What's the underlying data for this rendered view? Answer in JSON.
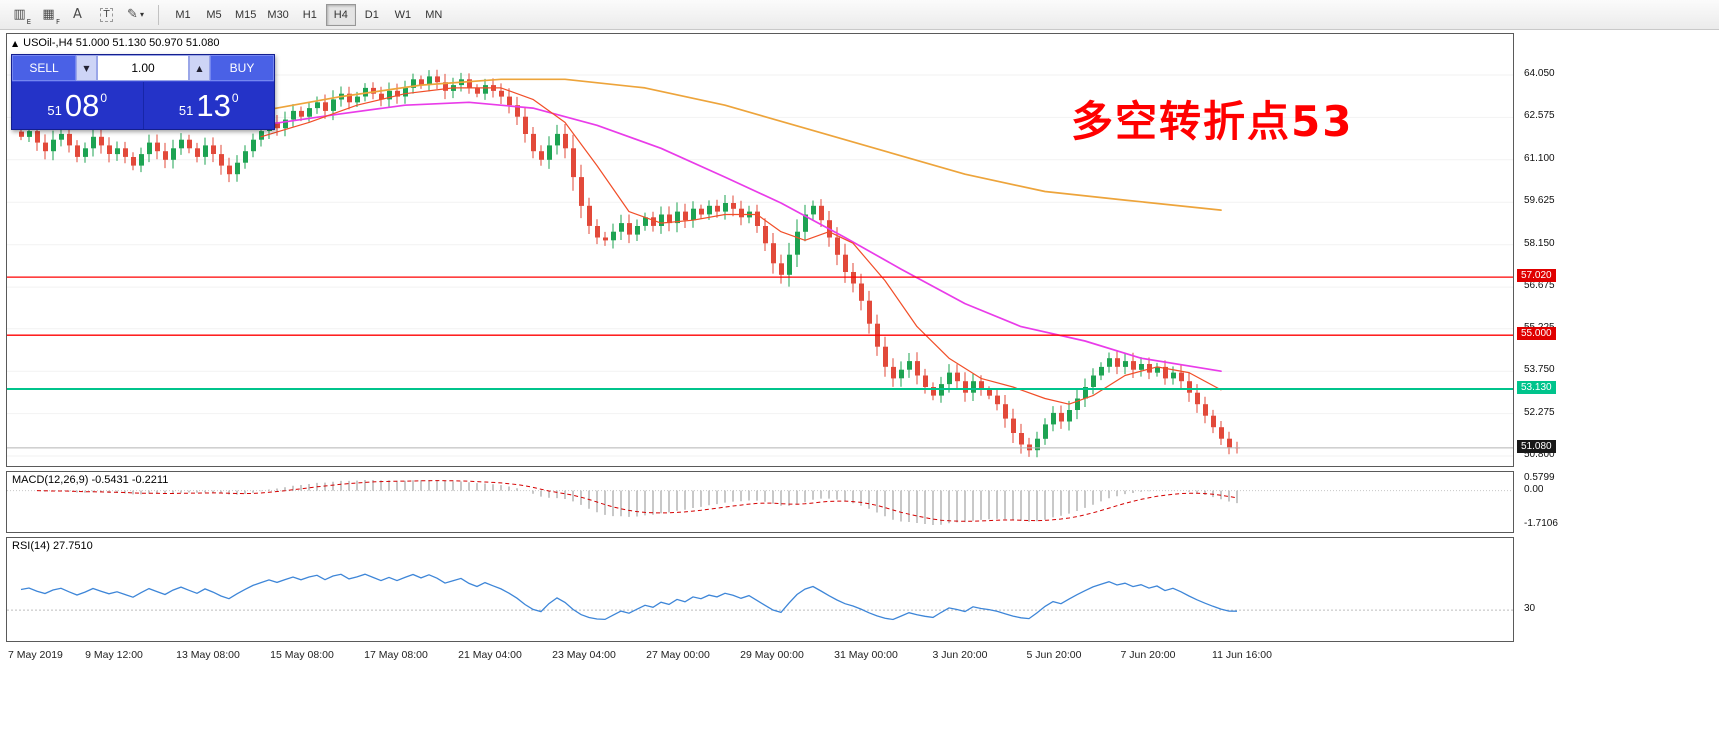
{
  "toolbar": {
    "icons": [
      {
        "name": "candlestick-chart-icon",
        "glyph": "▥",
        "sub": "E"
      },
      {
        "name": "tile-windows-icon",
        "glyph": "▦",
        "sub": "F"
      },
      {
        "name": "font-icon",
        "glyph": "A",
        "sub": ""
      },
      {
        "name": "text-label-icon",
        "glyph": "T",
        "sub": "",
        "boxed": true
      },
      {
        "name": "colors-icon",
        "glyph": "✎",
        "sub": "",
        "dropdown": true
      }
    ],
    "timeframes": [
      "M1",
      "M5",
      "M15",
      "M30",
      "H1",
      "H4",
      "D1",
      "W1",
      "MN"
    ],
    "active_timeframe": "H4"
  },
  "symbol_bar": {
    "collapse_icon": "▲",
    "text": "USOil-,H4  51.000 51.130 50.970 51.080"
  },
  "trade_panel": {
    "sell_label": "SELL",
    "buy_label": "BUY",
    "volume": "1.00",
    "sell_price_prefix": "51",
    "sell_price_main": "08",
    "sell_price_sup": "0",
    "buy_price_prefix": "51",
    "buy_price_main": "13",
    "buy_price_sup": "0"
  },
  "annotation": {
    "text": "多空转折点53",
    "color": "#ff0000"
  },
  "macd": {
    "label": "MACD(12,26,9) -0.5431 -0.2211",
    "axis": [
      "0.5799",
      "0.00",
      "-1.7106"
    ],
    "range_max": 0.5799,
    "range_min": -1.7106
  },
  "rsi": {
    "label": "RSI(14) 27.7510",
    "level_label": "30",
    "level": 30
  },
  "time_axis": {
    "labels": [
      "7 May 2019",
      "9 May 12:00",
      "13 May 08:00",
      "15 May 08:00",
      "17 May 08:00",
      "21 May 04:00",
      "23 May 04:00",
      "27 May 00:00",
      "29 May 00:00",
      "31 May 00:00",
      "3 Jun 20:00",
      "5 Jun 20:00",
      "7 Jun 20:00",
      "11 Jun 16:00"
    ]
  },
  "chart_data": {
    "type": "candlestick",
    "symbol": "USOil-",
    "timeframe": "H4",
    "ohlc_display": {
      "open": "51.000",
      "high": "51.130",
      "low": "50.970",
      "close": "51.080"
    },
    "y_ticks": [
      "64.050",
      "62.575",
      "61.100",
      "59.625",
      "58.150",
      "56.675",
      "55.225",
      "53.750",
      "52.275",
      "50.800"
    ],
    "closes": [
      61.9,
      62.1,
      61.7,
      61.4,
      61.8,
      62.0,
      61.6,
      61.2,
      61.5,
      61.9,
      61.6,
      61.3,
      61.5,
      61.2,
      60.9,
      61.3,
      61.7,
      61.4,
      61.1,
      61.5,
      61.8,
      61.5,
      61.2,
      61.6,
      61.3,
      60.9,
      60.6,
      61.0,
      61.4,
      61.8,
      62.1,
      62.4,
      62.2,
      62.5,
      62.8,
      62.6,
      62.9,
      63.1,
      62.8,
      63.2,
      63.4,
      63.1,
      63.3,
      63.6,
      63.4,
      63.2,
      63.5,
      63.3,
      63.6,
      63.9,
      63.7,
      64.0,
      63.8,
      63.5,
      63.7,
      63.9,
      63.6,
      63.4,
      63.7,
      63.5,
      63.3,
      63.0,
      62.6,
      62.0,
      61.4,
      61.1,
      61.6,
      62.0,
      61.5,
      60.5,
      59.5,
      58.8,
      58.4,
      58.3,
      58.6,
      58.9,
      58.5,
      58.8,
      59.1,
      58.8,
      59.2,
      58.9,
      59.3,
      59.0,
      59.4,
      59.2,
      59.5,
      59.3,
      59.6,
      59.4,
      59.1,
      59.3,
      58.8,
      58.2,
      57.5,
      57.1,
      57.8,
      58.6,
      59.2,
      59.5,
      59.0,
      58.4,
      57.8,
      57.2,
      56.8,
      56.2,
      55.4,
      54.6,
      53.9,
      53.5,
      53.8,
      54.1,
      53.6,
      53.2,
      52.9,
      53.3,
      53.7,
      53.4,
      53.0,
      53.4,
      53.1,
      52.9,
      52.6,
      52.1,
      51.6,
      51.2,
      51.0,
      51.4,
      51.9,
      52.3,
      52.0,
      52.4,
      52.8,
      53.2,
      53.6,
      53.9,
      54.2,
      53.9,
      54.1,
      53.8,
      54.0,
      53.7,
      53.9,
      53.5,
      53.7,
      53.4,
      53.0,
      52.6,
      52.2,
      51.8,
      51.4,
      51.1,
      51.08
    ],
    "levels": [
      {
        "price": 57.02,
        "label": "57.020",
        "color": "#ff0000",
        "width": 1.3,
        "tag_bg": "#e00000"
      },
      {
        "price": 55.0,
        "label": "55.000",
        "color": "#ff0000",
        "width": 1.3,
        "tag_bg": "#e00000"
      },
      {
        "price": 53.13,
        "label": "53.130",
        "color": "#00c48c",
        "width": 2,
        "tag_bg": "#00c48c"
      },
      {
        "price": 51.08,
        "label": "51.080",
        "color": "#b4b4b4",
        "width": 1,
        "tag_bg": "#181818"
      }
    ],
    "moving_averages": [
      {
        "name": "orange-ma-line",
        "color": "#eda43b",
        "width": 1.7,
        "points": [
          [
            30,
            62.8
          ],
          [
            40,
            63.3
          ],
          [
            50,
            63.7
          ],
          [
            60,
            63.9
          ],
          [
            68,
            63.9
          ],
          [
            78,
            63.6
          ],
          [
            88,
            63.0
          ],
          [
            98,
            62.2
          ],
          [
            108,
            61.4
          ],
          [
            118,
            60.6
          ],
          [
            128,
            60.0
          ],
          [
            138,
            59.7
          ],
          [
            150,
            59.35
          ]
        ]
      },
      {
        "name": "magenta-ma-line",
        "color": "#e93ce9",
        "width": 1.7,
        "points": [
          [
            30,
            62.3
          ],
          [
            40,
            62.7
          ],
          [
            48,
            63.0
          ],
          [
            56,
            63.1
          ],
          [
            64,
            62.9
          ],
          [
            72,
            62.3
          ],
          [
            80,
            61.5
          ],
          [
            88,
            60.5
          ],
          [
            95,
            59.6
          ],
          [
            103,
            58.4
          ],
          [
            110,
            57.3
          ],
          [
            118,
            56.1
          ],
          [
            125,
            55.3
          ],
          [
            133,
            54.8
          ],
          [
            140,
            54.2
          ],
          [
            150,
            53.75
          ]
        ]
      },
      {
        "name": "red-ma-line",
        "color": "#f14e28",
        "width": 1.2,
        "points": [
          [
            30,
            61.9
          ],
          [
            36,
            62.4
          ],
          [
            42,
            63.0
          ],
          [
            48,
            63.4
          ],
          [
            54,
            63.6
          ],
          [
            60,
            63.6
          ],
          [
            64,
            63.2
          ],
          [
            68,
            62.4
          ],
          [
            72,
            60.9
          ],
          [
            76,
            59.3
          ],
          [
            80,
            58.9
          ],
          [
            84,
            59.0
          ],
          [
            88,
            59.2
          ],
          [
            92,
            59.2
          ],
          [
            95,
            58.6
          ],
          [
            98,
            58.3
          ],
          [
            101,
            58.6
          ],
          [
            104,
            58.2
          ],
          [
            108,
            56.9
          ],
          [
            112,
            55.3
          ],
          [
            116,
            54.2
          ],
          [
            120,
            53.5
          ],
          [
            124,
            53.2
          ],
          [
            128,
            52.8
          ],
          [
            131,
            52.6
          ],
          [
            134,
            52.9
          ],
          [
            138,
            53.6
          ],
          [
            142,
            53.9
          ],
          [
            146,
            53.7
          ],
          [
            150,
            53.1
          ]
        ]
      }
    ],
    "colors": {
      "up": "#1da352",
      "down": "#e2493a",
      "macd_signal": "#d40000",
      "macd_hist": "#909090",
      "rsi": "#3e86d8"
    }
  }
}
